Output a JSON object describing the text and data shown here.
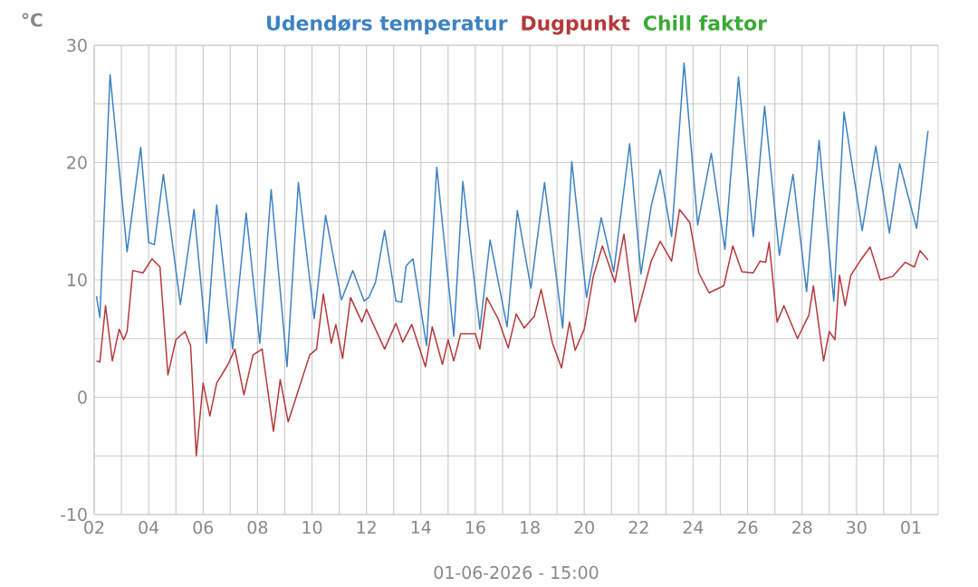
{
  "chart_data": {
    "type": "line",
    "xlabel": "01-06-2026 - 15:00",
    "ylabel": "°C",
    "xlim": [
      "2026-05-02T00:00",
      "2026-06-02T00:00"
    ],
    "xticks": [
      {
        "value": "2026-05-02T00:00",
        "label": "02"
      },
      {
        "value": "2026-05-03T00:00",
        "label": null
      },
      {
        "value": "2026-05-04T00:00",
        "label": "04"
      },
      {
        "value": "2026-05-05T00:00",
        "label": null
      },
      {
        "value": "2026-05-06T00:00",
        "label": "06"
      },
      {
        "value": "2026-05-07T00:00",
        "label": null
      },
      {
        "value": "2026-05-08T00:00",
        "label": "08"
      },
      {
        "value": "2026-05-09T00:00",
        "label": null
      },
      {
        "value": "2026-05-10T00:00",
        "label": "10"
      },
      {
        "value": "2026-05-11T00:00",
        "label": null
      },
      {
        "value": "2026-05-12T00:00",
        "label": "12"
      },
      {
        "value": "2026-05-13T00:00",
        "label": null
      },
      {
        "value": "2026-05-14T00:00",
        "label": "14"
      },
      {
        "value": "2026-05-15T00:00",
        "label": null
      },
      {
        "value": "2026-05-16T00:00",
        "label": "16"
      },
      {
        "value": "2026-05-17T00:00",
        "label": null
      },
      {
        "value": "2026-05-18T00:00",
        "label": "18"
      },
      {
        "value": "2026-05-19T00:00",
        "label": null
      },
      {
        "value": "2026-05-20T00:00",
        "label": "20"
      },
      {
        "value": "2026-05-21T00:00",
        "label": null
      },
      {
        "value": "2026-05-22T00:00",
        "label": "22"
      },
      {
        "value": "2026-05-23T00:00",
        "label": null
      },
      {
        "value": "2026-05-24T00:00",
        "label": "24"
      },
      {
        "value": "2026-05-25T00:00",
        "label": null
      },
      {
        "value": "2026-05-26T00:00",
        "label": "26"
      },
      {
        "value": "2026-05-27T00:00",
        "label": null
      },
      {
        "value": "2026-05-28T00:00",
        "label": "28"
      },
      {
        "value": "2026-05-29T00:00",
        "label": null
      },
      {
        "value": "2026-05-30T00:00",
        "label": "30"
      },
      {
        "value": "2026-05-31T00:00",
        "label": null
      },
      {
        "value": "2026-06-01T00:00",
        "label": "01"
      }
    ],
    "ylim": [
      -10,
      30
    ],
    "yticks": [
      -10,
      {
        "value": -5,
        "label": null
      },
      0,
      {
        "value": 5,
        "label": null
      },
      10,
      {
        "value": 15,
        "label": null
      },
      20,
      {
        "value": 25,
        "label": null
      },
      30
    ],
    "grid": true,
    "legend": "top",
    "series": [
      {
        "name": "Udendørs temperatur",
        "color": "#3c82c4",
        "x": [
          "2026-05-02T02:00",
          "2026-05-02T05:00",
          "2026-05-02T14:00",
          "2026-05-03T05:00",
          "2026-05-03T17:00",
          "2026-05-04T00:00",
          "2026-05-04T05:00",
          "2026-05-04T13:00",
          "2026-05-05T04:00",
          "2026-05-05T16:00",
          "2026-05-06T03:00",
          "2026-05-06T12:00",
          "2026-05-07T02:00",
          "2026-05-07T14:00",
          "2026-05-08T02:00",
          "2026-05-08T12:00",
          "2026-05-09T02:00",
          "2026-05-09T12:00",
          "2026-05-10T02:00",
          "2026-05-10T12:00",
          "2026-05-11T02:00",
          "2026-05-11T12:00",
          "2026-05-11T22:00",
          "2026-05-12T02:00",
          "2026-05-12T08:00",
          "2026-05-12T16:00",
          "2026-05-13T02:00",
          "2026-05-13T07:00",
          "2026-05-13T11:00",
          "2026-05-13T17:00",
          "2026-05-14T05:00",
          "2026-05-14T14:00",
          "2026-05-15T05:00",
          "2026-05-15T13:00",
          "2026-05-16T04:00",
          "2026-05-16T13:00",
          "2026-05-17T04:00",
          "2026-05-17T13:00",
          "2026-05-18T01:00",
          "2026-05-18T13:00",
          "2026-05-19T05:00",
          "2026-05-19T13:00",
          "2026-05-20T02:00",
          "2026-05-20T15:00",
          "2026-05-21T02:00",
          "2026-05-21T16:00",
          "2026-05-22T02:00",
          "2026-05-22T11:00",
          "2026-05-22T19:00",
          "2026-05-23T05:00",
          "2026-05-23T16:00",
          "2026-05-24T04:00",
          "2026-05-24T16:00",
          "2026-05-25T04:00",
          "2026-05-25T16:00",
          "2026-05-26T05:00",
          "2026-05-26T15:00",
          "2026-05-27T04:00",
          "2026-05-27T16:00",
          "2026-05-28T04:00",
          "2026-05-28T15:00",
          "2026-05-29T04:00",
          "2026-05-29T13:00",
          "2026-05-30T05:00",
          "2026-05-30T17:00",
          "2026-05-31T05:00",
          "2026-05-31T14:00",
          "2026-06-01T05:00",
          "2026-06-01T15:00"
        ],
        "values": [
          8.6,
          6.8,
          27.5,
          12.4,
          21.3,
          13.2,
          13.0,
          19.0,
          7.9,
          16.0,
          4.6,
          16.4,
          4.1,
          15.7,
          4.6,
          17.7,
          2.6,
          18.3,
          6.7,
          15.5,
          8.3,
          10.8,
          8.2,
          8.5,
          9.8,
          14.2,
          8.2,
          8.1,
          11.2,
          11.8,
          4.4,
          19.6,
          5.2,
          18.4,
          5.8,
          13.4,
          6.0,
          15.9,
          9.3,
          18.3,
          5.9,
          20.1,
          8.5,
          15.3,
          10.7,
          21.6,
          10.5,
          16.3,
          19.4,
          13.7,
          28.5,
          14.7,
          20.8,
          12.6,
          27.3,
          13.7,
          24.8,
          12.1,
          19.0,
          9.0,
          21.9,
          8.2,
          24.3,
          14.2,
          21.4,
          14.0,
          19.9,
          14.4,
          22.7
        ]
      },
      {
        "name": "Dugpunkt",
        "color": "#b5383a",
        "x": [
          "2026-05-02T02:00",
          "2026-05-02T05:00",
          "2026-05-02T10:00",
          "2026-05-02T16:00",
          "2026-05-02T22:00",
          "2026-05-03T02:00",
          "2026-05-03T05:00",
          "2026-05-03T10:00",
          "2026-05-03T19:00",
          "2026-05-04T03:00",
          "2026-05-04T10:00",
          "2026-05-04T17:00",
          "2026-05-05T00:00",
          "2026-05-05T08:00",
          "2026-05-05T13:00",
          "2026-05-05T18:00",
          "2026-05-06T00:00",
          "2026-05-06T06:00",
          "2026-05-06T12:00",
          "2026-05-06T22:00",
          "2026-05-07T04:00",
          "2026-05-07T12:00",
          "2026-05-07T20:00",
          "2026-05-08T04:00",
          "2026-05-08T14:00",
          "2026-05-08T20:00",
          "2026-05-09T03:00",
          "2026-05-09T10:00",
          "2026-05-09T22:00",
          "2026-05-10T04:00",
          "2026-05-10T10:00",
          "2026-05-10T17:00",
          "2026-05-10T21:00",
          "2026-05-11T03:00",
          "2026-05-11T10:00",
          "2026-05-11T20:00",
          "2026-05-12T00:00",
          "2026-05-12T16:00",
          "2026-05-13T02:00",
          "2026-05-13T08:00",
          "2026-05-13T16:00",
          "2026-05-14T04:00",
          "2026-05-14T10:00",
          "2026-05-14T19:00",
          "2026-05-15T00:00",
          "2026-05-15T05:00",
          "2026-05-15T11:00",
          "2026-05-16T00:00",
          "2026-05-16T04:00",
          "2026-05-16T10:00",
          "2026-05-16T20:00",
          "2026-05-17T05:00",
          "2026-05-17T12:00",
          "2026-05-17T19:00",
          "2026-05-18T04:00",
          "2026-05-18T10:00",
          "2026-05-18T20:00",
          "2026-05-19T04:00",
          "2026-05-19T11:00",
          "2026-05-19T16:00",
          "2026-05-20T00:00",
          "2026-05-20T08:00",
          "2026-05-20T16:00",
          "2026-05-21T03:00",
          "2026-05-21T11:00",
          "2026-05-21T21:00",
          "2026-05-22T11:00",
          "2026-05-22T19:00",
          "2026-05-23T05:00",
          "2026-05-23T12:00",
          "2026-05-23T21:00",
          "2026-05-24T05:00",
          "2026-05-24T14:00",
          "2026-05-25T03:00",
          "2026-05-25T11:00",
          "2026-05-25T19:00",
          "2026-05-26T05:00",
          "2026-05-26T11:00",
          "2026-05-26T16:00",
          "2026-05-26T19:00",
          "2026-05-27T02:00",
          "2026-05-27T08:00",
          "2026-05-27T20:00",
          "2026-05-28T06:00",
          "2026-05-28T10:00",
          "2026-05-28T19:00",
          "2026-05-29T00:00",
          "2026-05-29T05:00",
          "2026-05-29T09:00",
          "2026-05-29T14:00",
          "2026-05-29T19:00",
          "2026-05-30T03:00",
          "2026-05-30T12:00",
          "2026-05-30T21:00",
          "2026-05-31T08:00",
          "2026-05-31T19:00",
          "2026-06-01T03:00",
          "2026-06-01T08:00",
          "2026-06-01T15:00"
        ],
        "values": [
          3.1,
          3.0,
          7.8,
          3.1,
          5.8,
          4.9,
          5.6,
          10.8,
          10.6,
          11.8,
          11.1,
          1.9,
          4.9,
          5.6,
          4.4,
          -5.0,
          1.2,
          -1.6,
          1.2,
          2.8,
          4.1,
          0.2,
          3.6,
          4.1,
          -2.9,
          1.5,
          -2.1,
          0.0,
          3.6,
          4.1,
          8.8,
          4.6,
          6.2,
          3.3,
          8.5,
          6.4,
          7.5,
          4.1,
          6.3,
          4.7,
          6.2,
          2.6,
          6.0,
          2.8,
          4.9,
          3.1,
          5.4,
          5.4,
          4.1,
          8.5,
          6.7,
          4.2,
          7.1,
          5.9,
          6.9,
          9.2,
          4.6,
          2.5,
          6.4,
          4.0,
          5.8,
          10.3,
          12.9,
          9.8,
          13.9,
          6.4,
          11.6,
          13.3,
          11.6,
          16.0,
          14.9,
          10.6,
          8.9,
          9.5,
          12.9,
          10.7,
          10.6,
          11.6,
          11.5,
          13.2,
          6.4,
          7.8,
          5.0,
          7.0,
          9.5,
          3.1,
          5.6,
          4.9,
          10.4,
          7.8,
          10.4,
          11.6,
          12.8,
          10.0,
          10.3,
          11.5,
          11.1,
          12.5,
          11.7
        ]
      },
      {
        "name": "Chill faktor",
        "color": "#3aaa35"
      }
    ]
  }
}
